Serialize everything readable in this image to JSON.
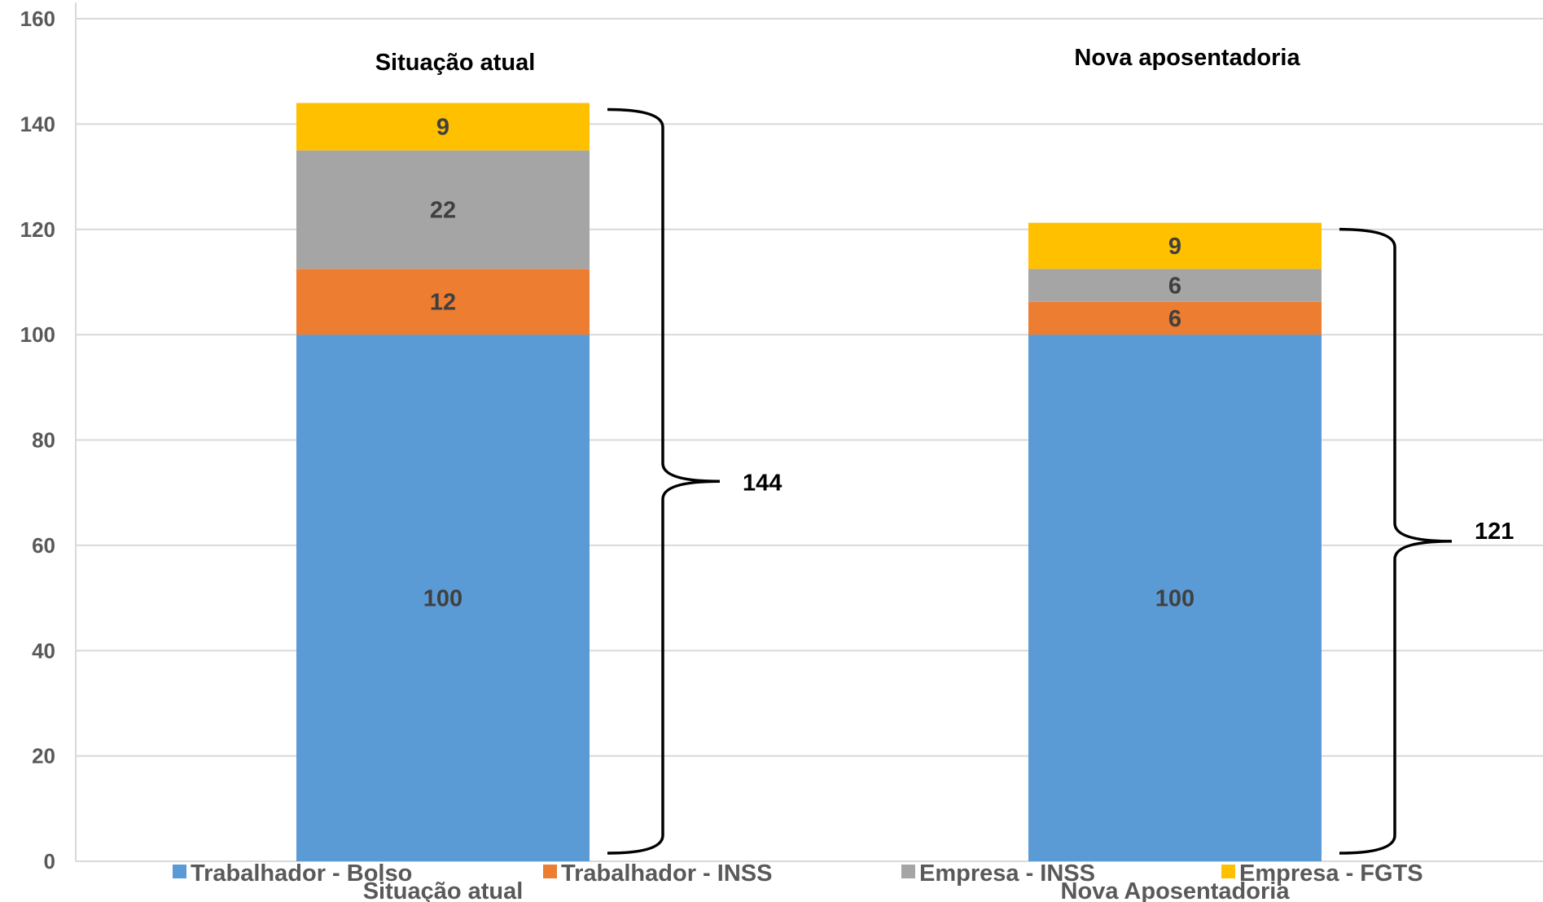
{
  "chart_data": {
    "type": "bar",
    "stacked": true,
    "categories": [
      "Situação atual",
      "Nova Aposentadoria"
    ],
    "category_titles": [
      "Situação atual",
      "Nova aposentadoria"
    ],
    "series": [
      {
        "name": "Trabalhador - Bolso",
        "values": [
          100,
          100
        ],
        "labels": [
          "100",
          "100"
        ],
        "color": "#5B9BD5"
      },
      {
        "name": "Trabalhador - INSS",
        "values": [
          12.5,
          6.25
        ],
        "labels": [
          "12",
          "6"
        ],
        "color": "#ED7D31"
      },
      {
        "name": "Empresa - INSS",
        "values": [
          22.5,
          6.25
        ],
        "labels": [
          "22",
          "6"
        ],
        "color": "#A5A5A5"
      },
      {
        "name": "Empresa - FGTS",
        "values": [
          9,
          8.75
        ],
        "labels": [
          "9",
          "9"
        ],
        "color": "#FFC000"
      }
    ],
    "totals": [
      "144",
      "121"
    ],
    "ylim": [
      0,
      160
    ],
    "yticks": [
      "0",
      "20",
      "40",
      "60",
      "80",
      "100",
      "120",
      "140",
      "160"
    ],
    "grid": true,
    "legend": "bottom"
  }
}
